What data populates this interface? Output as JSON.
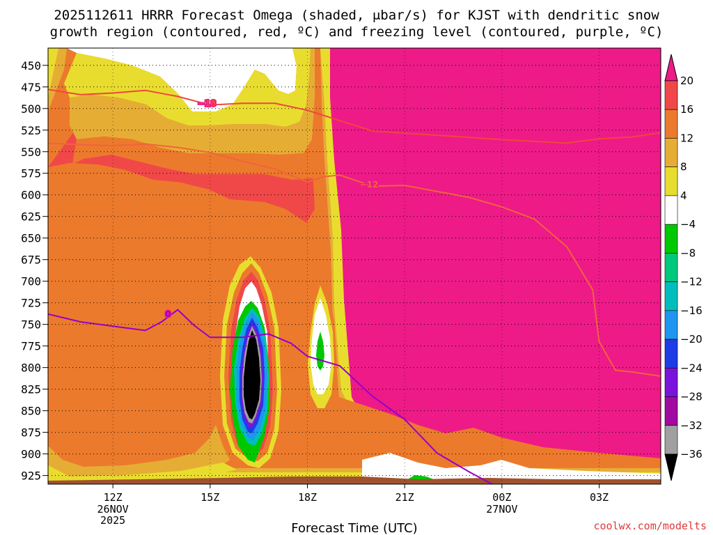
{
  "chart_data": {
    "type": "heatmap",
    "title_line1": "2025112611 HRRR Forecast Omega (shaded, μbar/s) for KJST with dendritic snow",
    "title_line2": "growth region (contoured, red, ºC) and freezing level (contoured, purple, ºC)",
    "xlabel": "Forecast Time (UTC)",
    "credit": "coolwx.com/modelts",
    "x_hours": [
      10.0,
      28.9
    ],
    "x_ticks": [
      {
        "hour": 12,
        "label": "12Z",
        "sub1": "26NOV",
        "sub2": "2025"
      },
      {
        "hour": 15,
        "label": "15Z",
        "sub1": "",
        "sub2": ""
      },
      {
        "hour": 18,
        "label": "18Z",
        "sub1": "",
        "sub2": ""
      },
      {
        "hour": 21,
        "label": "21Z",
        "sub1": "",
        "sub2": ""
      },
      {
        "hour": 24,
        "label": "00Z",
        "sub1": "27NOV",
        "sub2": ""
      },
      {
        "hour": 27,
        "label": "03Z",
        "sub1": "",
        "sub2": ""
      }
    ],
    "y_levels_mb": [
      "450",
      "475",
      "500",
      "525",
      "550",
      "575",
      "600",
      "625",
      "650",
      "675",
      "700",
      "725",
      "750",
      "775",
      "800",
      "825",
      "850",
      "875",
      "900",
      "925"
    ],
    "y_range_mb": [
      430,
      935
    ],
    "colorbar": {
      "labels": [
        "20",
        "16",
        "12",
        "8",
        "4",
        "−4",
        "−8",
        "−12",
        "−16",
        "−20",
        "−24",
        "−28",
        "−32",
        "−36"
      ],
      "colors": [
        "#ee1a88",
        "#f04848",
        "#ec7a2c",
        "#e6ad35",
        "#e8dd2e",
        "#ffffff",
        "#00c800",
        "#00c87c",
        "#00bebe",
        "#1e96f0",
        "#1e3ce6",
        "#7a14dc",
        "#a00aa0",
        "#a0a0a0",
        "#000000"
      ]
    },
    "contours": [
      {
        "name": "-18C isotherm",
        "label": "−18",
        "color": "#f0463c",
        "points": [
          [
            10.0,
            478
          ],
          [
            11.0,
            484
          ],
          [
            12.0,
            482
          ],
          [
            13.0,
            479
          ],
          [
            14.0,
            486
          ],
          [
            15.0,
            496
          ],
          [
            16.0,
            494
          ],
          [
            17.0,
            494
          ],
          [
            18.0,
            502
          ],
          [
            19.0,
            514
          ],
          [
            20.0,
            526
          ],
          [
            22.0,
            531
          ],
          [
            24.0,
            536
          ],
          [
            26.0,
            540
          ],
          [
            27.0,
            535
          ],
          [
            28.0,
            533
          ],
          [
            28.9,
            528
          ]
        ]
      },
      {
        "name": "-12C isotherm",
        "label": "−12",
        "color": "#f0643c",
        "points": [
          [
            10.0,
            540
          ],
          [
            11.0,
            542
          ],
          [
            12.0,
            543
          ],
          [
            13.0,
            541
          ],
          [
            14.0,
            545
          ],
          [
            15.0,
            551
          ],
          [
            16.0,
            561
          ],
          [
            17.0,
            570
          ],
          [
            18.0,
            585
          ],
          [
            18.5,
            579
          ],
          [
            19.0,
            577
          ],
          [
            20.0,
            590
          ],
          [
            21.0,
            589
          ],
          [
            22.0,
            596
          ],
          [
            23.0,
            603
          ],
          [
            24.0,
            614
          ],
          [
            25.0,
            628
          ],
          [
            26.0,
            660
          ],
          [
            26.8,
            710
          ],
          [
            27.0,
            770
          ],
          [
            27.5,
            803
          ],
          [
            28.0,
            805
          ],
          [
            28.9,
            810
          ]
        ]
      },
      {
        "name": "0C freezing level",
        "label": "0",
        "color": "#9600c8",
        "points": [
          [
            10.0,
            738
          ],
          [
            11.0,
            747
          ],
          [
            12.0,
            752
          ],
          [
            13.0,
            757
          ],
          [
            13.5,
            747
          ],
          [
            14.0,
            733
          ],
          [
            14.5,
            751
          ],
          [
            15.0,
            765
          ],
          [
            16.0,
            765
          ],
          [
            16.8,
            761
          ],
          [
            17.5,
            772
          ],
          [
            18.0,
            787
          ],
          [
            19.0,
            798
          ],
          [
            20.0,
            833
          ],
          [
            21.0,
            860
          ],
          [
            22.0,
            899
          ],
          [
            23.0,
            921
          ],
          [
            23.7,
            935
          ]
        ]
      }
    ]
  }
}
